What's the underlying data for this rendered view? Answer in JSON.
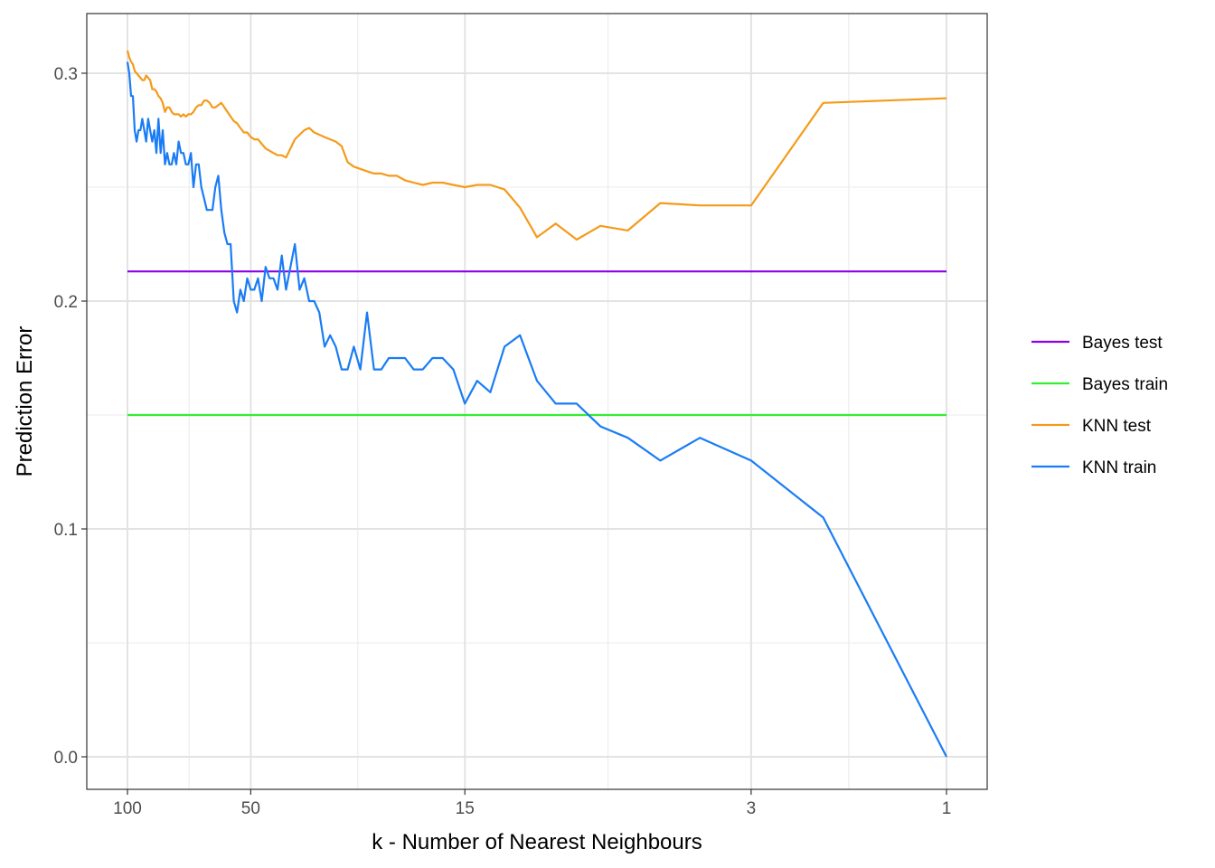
{
  "chart_data": {
    "type": "line",
    "title": "",
    "xlabel": "k - Number of Nearest Neighbours",
    "ylabel": "Prediction Error",
    "x_scale": "log10, reversed",
    "xlim": [
      100,
      1
    ],
    "ylim": [
      0.0,
      0.3
    ],
    "x_ticks": [
      {
        "value": 100,
        "label": "100"
      },
      {
        "value": 50,
        "label": "50"
      },
      {
        "value": 15,
        "label": "15"
      },
      {
        "value": 3,
        "label": "3"
      },
      {
        "value": 1,
        "label": "1"
      }
    ],
    "y_ticks": [
      {
        "value": 0.0,
        "label": "0.0"
      },
      {
        "value": 0.1,
        "label": "0.1"
      },
      {
        "value": 0.2,
        "label": "0.2"
      },
      {
        "value": 0.3,
        "label": "0.3"
      }
    ],
    "grid": true,
    "legend_position": "right",
    "series": [
      {
        "name": "Bayes test",
        "color": "#8B00E6",
        "points": [
          [
            100,
            0.213
          ],
          [
            1,
            0.213
          ]
        ]
      },
      {
        "name": "Bayes train",
        "color": "#33EE33",
        "points": [
          [
            100,
            0.15
          ],
          [
            1,
            0.15
          ]
        ]
      },
      {
        "name": "KNN test",
        "color": "#F59A1B",
        "points": [
          [
            100,
            0.31
          ],
          [
            99,
            0.307
          ],
          [
            98,
            0.305
          ],
          [
            97,
            0.304
          ],
          [
            96,
            0.301
          ],
          [
            95,
            0.3
          ],
          [
            94,
            0.299
          ],
          [
            93,
            0.298
          ],
          [
            92,
            0.297
          ],
          [
            91,
            0.297
          ],
          [
            90,
            0.299
          ],
          [
            89,
            0.298
          ],
          [
            88,
            0.297
          ],
          [
            87,
            0.293
          ],
          [
            86,
            0.293
          ],
          [
            85,
            0.292
          ],
          [
            84,
            0.29
          ],
          [
            83,
            0.289
          ],
          [
            82,
            0.287
          ],
          [
            81,
            0.283
          ],
          [
            80,
            0.285
          ],
          [
            79,
            0.285
          ],
          [
            78,
            0.283
          ],
          [
            77,
            0.282
          ],
          [
            76,
            0.282
          ],
          [
            75,
            0.282
          ],
          [
            74,
            0.281
          ],
          [
            73,
            0.282
          ],
          [
            72,
            0.281
          ],
          [
            71,
            0.282
          ],
          [
            70,
            0.282
          ],
          [
            69,
            0.283
          ],
          [
            68,
            0.285
          ],
          [
            67,
            0.286
          ],
          [
            66,
            0.286
          ],
          [
            65,
            0.288
          ],
          [
            64,
            0.288
          ],
          [
            63,
            0.287
          ],
          [
            62,
            0.285
          ],
          [
            61,
            0.285
          ],
          [
            60,
            0.286
          ],
          [
            59,
            0.287
          ],
          [
            58,
            0.285
          ],
          [
            57,
            0.283
          ],
          [
            56,
            0.281
          ],
          [
            55,
            0.279
          ],
          [
            54,
            0.278
          ],
          [
            53,
            0.276
          ],
          [
            52,
            0.274
          ],
          [
            51,
            0.274
          ],
          [
            50,
            0.272
          ],
          [
            49,
            0.271
          ],
          [
            48,
            0.271
          ],
          [
            47,
            0.269
          ],
          [
            46,
            0.267
          ],
          [
            45,
            0.266
          ],
          [
            44,
            0.265
          ],
          [
            43,
            0.264
          ],
          [
            42,
            0.264
          ],
          [
            41,
            0.263
          ],
          [
            40,
            0.267
          ],
          [
            39,
            0.271
          ],
          [
            38,
            0.273
          ],
          [
            37,
            0.275
          ],
          [
            36,
            0.276
          ],
          [
            35,
            0.274
          ],
          [
            34,
            0.273
          ],
          [
            33,
            0.272
          ],
          [
            32,
            0.271
          ],
          [
            31,
            0.27
          ],
          [
            30,
            0.268
          ],
          [
            29,
            0.261
          ],
          [
            28,
            0.259
          ],
          [
            27,
            0.258
          ],
          [
            26,
            0.257
          ],
          [
            25,
            0.256
          ],
          [
            24,
            0.256
          ],
          [
            23,
            0.255
          ],
          [
            22,
            0.255
          ],
          [
            21,
            0.253
          ],
          [
            20,
            0.252
          ],
          [
            19,
            0.251
          ],
          [
            18,
            0.252
          ],
          [
            17,
            0.252
          ],
          [
            16,
            0.251
          ],
          [
            15,
            0.25
          ],
          [
            14,
            0.251
          ],
          [
            13,
            0.251
          ],
          [
            12,
            0.249
          ],
          [
            11,
            0.241
          ],
          [
            10,
            0.228
          ],
          [
            9,
            0.234
          ],
          [
            8,
            0.227
          ],
          [
            7,
            0.233
          ],
          [
            6,
            0.231
          ],
          [
            5,
            0.243
          ],
          [
            4,
            0.242
          ],
          [
            3,
            0.242
          ],
          [
            2,
            0.287
          ],
          [
            1,
            0.289
          ]
        ]
      },
      {
        "name": "KNN train",
        "color": "#1A7CF5",
        "points": [
          [
            100,
            0.305
          ],
          [
            99,
            0.3
          ],
          [
            98,
            0.29
          ],
          [
            97,
            0.29
          ],
          [
            96,
            0.275
          ],
          [
            95,
            0.27
          ],
          [
            94,
            0.275
          ],
          [
            93,
            0.275
          ],
          [
            92,
            0.28
          ],
          [
            91,
            0.275
          ],
          [
            90,
            0.27
          ],
          [
            89,
            0.28
          ],
          [
            88,
            0.275
          ],
          [
            87,
            0.27
          ],
          [
            86,
            0.275
          ],
          [
            85,
            0.265
          ],
          [
            84,
            0.28
          ],
          [
            83,
            0.265
          ],
          [
            82,
            0.275
          ],
          [
            81,
            0.26
          ],
          [
            80,
            0.265
          ],
          [
            79,
            0.26
          ],
          [
            78,
            0.26
          ],
          [
            77,
            0.265
          ],
          [
            76,
            0.26
          ],
          [
            75,
            0.27
          ],
          [
            74,
            0.265
          ],
          [
            73,
            0.265
          ],
          [
            72,
            0.26
          ],
          [
            71,
            0.26
          ],
          [
            70,
            0.265
          ],
          [
            69,
            0.25
          ],
          [
            68,
            0.26
          ],
          [
            67,
            0.26
          ],
          [
            66,
            0.25
          ],
          [
            65,
            0.245
          ],
          [
            64,
            0.24
          ],
          [
            63,
            0.24
          ],
          [
            62,
            0.24
          ],
          [
            61,
            0.25
          ],
          [
            60,
            0.255
          ],
          [
            59,
            0.24
          ],
          [
            58,
            0.23
          ],
          [
            57,
            0.225
          ],
          [
            56,
            0.225
          ],
          [
            55,
            0.2
          ],
          [
            54,
            0.195
          ],
          [
            53,
            0.205
          ],
          [
            52,
            0.2
          ],
          [
            51,
            0.21
          ],
          [
            50,
            0.205
          ],
          [
            49,
            0.205
          ],
          [
            48,
            0.21
          ],
          [
            47,
            0.2
          ],
          [
            46,
            0.215
          ],
          [
            45,
            0.21
          ],
          [
            44,
            0.21
          ],
          [
            43,
            0.205
          ],
          [
            42,
            0.22
          ],
          [
            41,
            0.205
          ],
          [
            40,
            0.215
          ],
          [
            39,
            0.225
          ],
          [
            38,
            0.205
          ],
          [
            37,
            0.21
          ],
          [
            36,
            0.2
          ],
          [
            35,
            0.2
          ],
          [
            34,
            0.195
          ],
          [
            33,
            0.18
          ],
          [
            32,
            0.185
          ],
          [
            31,
            0.18
          ],
          [
            30,
            0.17
          ],
          [
            29,
            0.17
          ],
          [
            28,
            0.18
          ],
          [
            27,
            0.17
          ],
          [
            26,
            0.195
          ],
          [
            25,
            0.17
          ],
          [
            24,
            0.17
          ],
          [
            23,
            0.175
          ],
          [
            22,
            0.175
          ],
          [
            21,
            0.175
          ],
          [
            20,
            0.17
          ],
          [
            19,
            0.17
          ],
          [
            18,
            0.175
          ],
          [
            17,
            0.175
          ],
          [
            16,
            0.17
          ],
          [
            15,
            0.155
          ],
          [
            14,
            0.165
          ],
          [
            13,
            0.16
          ],
          [
            12,
            0.18
          ],
          [
            11,
            0.185
          ],
          [
            10,
            0.165
          ],
          [
            9,
            0.155
          ],
          [
            8,
            0.155
          ],
          [
            7,
            0.145
          ],
          [
            6,
            0.14
          ],
          [
            5,
            0.13
          ],
          [
            4,
            0.14
          ],
          [
            3,
            0.13
          ],
          [
            2,
            0.105
          ],
          [
            1,
            0.0
          ]
        ]
      }
    ]
  }
}
